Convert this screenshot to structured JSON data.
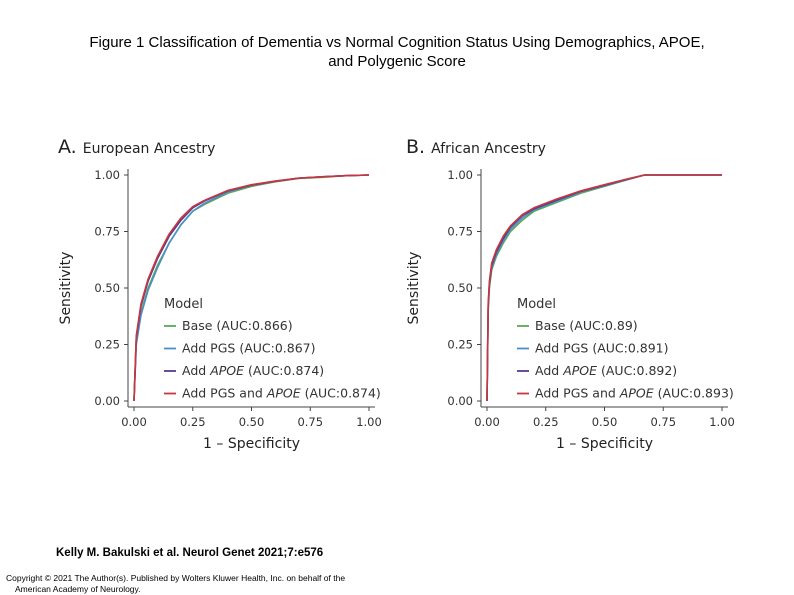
{
  "title": {
    "line1": "Figure 1 Classification of Dementia vs Normal Cognition Status Using Demographics, APOE,",
    "line2": "and Polygenic Score"
  },
  "citation": "Kelly M. Bakulski et al. Neurol Genet 2021;7:e576",
  "copyright": {
    "line1": "Copyright © 2021 The Author(s). Published by Wolters Kluwer Health, Inc. on behalf of the",
    "line2": "American Academy of Neurology."
  },
  "colors": {
    "base": "#5aaa52",
    "add_pgs": "#4a8fc9",
    "add_apoe": "#5a3a8e",
    "add_pgs_apoe": "#c8373e"
  },
  "chart_data": [
    {
      "type": "line",
      "panel_letter": "A.",
      "title": "European Ancestry",
      "xlabel": "1 – Specificity",
      "ylabel": "Sensitivity",
      "xlim": [
        0,
        1
      ],
      "ylim": [
        0,
        1
      ],
      "x_ticks": [
        "0.00",
        "0.25",
        "0.50",
        "0.75",
        "1.00"
      ],
      "y_ticks": [
        "0.00",
        "0.25",
        "0.50",
        "0.75",
        "1.00"
      ],
      "legend_title": "Model",
      "legend_position": "bottom-right",
      "series": [
        {
          "name": "Base",
          "auc_label": "(AUC:0.866)",
          "italic": false,
          "color_key": "base",
          "x": [
            0,
            0.01,
            0.03,
            0.06,
            0.1,
            0.15,
            0.2,
            0.25,
            0.3,
            0.4,
            0.5,
            0.6,
            0.7,
            0.8,
            0.9,
            1.0
          ],
          "y": [
            0,
            0.26,
            0.39,
            0.5,
            0.6,
            0.7,
            0.78,
            0.84,
            0.87,
            0.92,
            0.95,
            0.97,
            0.985,
            0.99,
            0.997,
            1.0
          ]
        },
        {
          "name": "Add PGS",
          "auc_label": "(AUC:0.867)",
          "italic": false,
          "color_key": "add_pgs",
          "x": [
            0,
            0.01,
            0.03,
            0.06,
            0.1,
            0.15,
            0.2,
            0.25,
            0.3,
            0.4,
            0.5,
            0.6,
            0.7,
            0.8,
            0.9,
            1.0
          ],
          "y": [
            0,
            0.25,
            0.38,
            0.49,
            0.59,
            0.7,
            0.78,
            0.84,
            0.875,
            0.925,
            0.955,
            0.972,
            0.986,
            0.992,
            0.997,
            1.0
          ]
        },
        {
          "name": "Add",
          "name_suffix": "APOE",
          "auc_label": "(AUC:0.874)",
          "italic": true,
          "color_key": "add_apoe",
          "x": [
            0,
            0.01,
            0.03,
            0.06,
            0.1,
            0.15,
            0.2,
            0.25,
            0.3,
            0.4,
            0.5,
            0.6,
            0.7,
            0.8,
            0.9,
            1.0
          ],
          "y": [
            0,
            0.28,
            0.42,
            0.53,
            0.63,
            0.73,
            0.8,
            0.855,
            0.885,
            0.93,
            0.955,
            0.972,
            0.986,
            0.992,
            0.997,
            1.0
          ]
        },
        {
          "name": "Add PGS and",
          "name_suffix": "APOE",
          "auc_label": "(AUC:0.874)",
          "italic": true,
          "color_key": "add_pgs_apoe",
          "x": [
            0,
            0.01,
            0.03,
            0.06,
            0.1,
            0.15,
            0.2,
            0.25,
            0.3,
            0.4,
            0.5,
            0.6,
            0.7,
            0.8,
            0.9,
            1.0
          ],
          "y": [
            0,
            0.29,
            0.43,
            0.54,
            0.64,
            0.74,
            0.81,
            0.86,
            0.888,
            0.932,
            0.957,
            0.973,
            0.986,
            0.992,
            0.997,
            1.0
          ]
        }
      ]
    },
    {
      "type": "line",
      "panel_letter": "B.",
      "title": "African Ancestry",
      "xlabel": "1 – Specificity",
      "ylabel": "Sensitivity",
      "xlim": [
        0,
        1
      ],
      "ylim": [
        0,
        1
      ],
      "x_ticks": [
        "0.00",
        "0.25",
        "0.50",
        "0.75",
        "1.00"
      ],
      "y_ticks": [
        "0.00",
        "0.25",
        "0.50",
        "0.75",
        "1.00"
      ],
      "legend_title": "Model",
      "legend_position": "bottom-right",
      "series": [
        {
          "name": "Base",
          "auc_label": "(AUC:0.89)",
          "italic": false,
          "color_key": "base",
          "x": [
            0,
            0.005,
            0.01,
            0.02,
            0.04,
            0.07,
            0.1,
            0.15,
            0.2,
            0.3,
            0.4,
            0.5,
            0.6,
            0.67,
            0.8,
            1.0
          ],
          "y": [
            0,
            0.4,
            0.5,
            0.58,
            0.64,
            0.7,
            0.75,
            0.8,
            0.84,
            0.88,
            0.92,
            0.95,
            0.98,
            1.0,
            1.0,
            1.0
          ]
        },
        {
          "name": "Add PGS",
          "auc_label": "(AUC:0.891)",
          "italic": false,
          "color_key": "add_pgs",
          "x": [
            0,
            0.005,
            0.01,
            0.02,
            0.04,
            0.07,
            0.1,
            0.15,
            0.2,
            0.3,
            0.4,
            0.5,
            0.6,
            0.67,
            0.8,
            1.0
          ],
          "y": [
            0,
            0.41,
            0.51,
            0.59,
            0.65,
            0.71,
            0.76,
            0.81,
            0.845,
            0.885,
            0.925,
            0.952,
            0.98,
            1.0,
            1.0,
            1.0
          ]
        },
        {
          "name": "Add",
          "name_suffix": "APOE",
          "auc_label": "(AUC:0.892)",
          "italic": true,
          "color_key": "add_apoe",
          "x": [
            0,
            0.005,
            0.01,
            0.02,
            0.04,
            0.07,
            0.1,
            0.15,
            0.2,
            0.3,
            0.4,
            0.5,
            0.6,
            0.67,
            0.8,
            1.0
          ],
          "y": [
            0,
            0.42,
            0.52,
            0.6,
            0.66,
            0.72,
            0.77,
            0.82,
            0.85,
            0.89,
            0.928,
            0.955,
            0.982,
            1.0,
            1.0,
            1.0
          ]
        },
        {
          "name": "Add PGS and",
          "name_suffix": "APOE",
          "auc_label": "(AUC:0.893)",
          "italic": true,
          "color_key": "add_pgs_apoe",
          "x": [
            0,
            0.005,
            0.01,
            0.02,
            0.04,
            0.07,
            0.1,
            0.15,
            0.2,
            0.3,
            0.4,
            0.5,
            0.6,
            0.67,
            0.8,
            1.0
          ],
          "y": [
            0,
            0.43,
            0.53,
            0.61,
            0.67,
            0.73,
            0.775,
            0.825,
            0.855,
            0.895,
            0.93,
            0.957,
            0.983,
            1.0,
            1.0,
            1.0
          ]
        }
      ]
    }
  ]
}
